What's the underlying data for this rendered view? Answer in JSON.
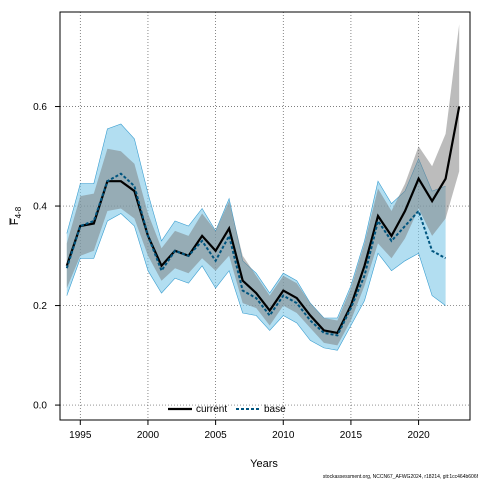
{
  "chart_data": {
    "type": "line",
    "xlabel": "Years",
    "ylabel_main": "F",
    "ylabel_sub": "4-8",
    "xlim": [
      1993.5,
      2023.8
    ],
    "ylim": [
      -0.03,
      0.79
    ],
    "xticks": [
      1995,
      2000,
      2005,
      2010,
      2015,
      2020
    ],
    "yticks": [
      0.0,
      0.2,
      0.4,
      0.6
    ],
    "ytick_labels": [
      "0.0",
      "0.2",
      "0.4",
      "0.6"
    ],
    "grid": true,
    "legend_position": "bottom-center",
    "footer_text": "stockassessment.org, NCCN67_AFWG2024, r18214, git:1cc464b606f",
    "colors": {
      "current_line": "#000000",
      "current_band": "#a9a9a9",
      "base_line": "#00557f",
      "base_band": "#7ec8e8"
    },
    "series": [
      {
        "name": "current",
        "x": [
          1994,
          1995,
          1996,
          1997,
          1998,
          1999,
          2000,
          2001,
          2002,
          2003,
          2004,
          2005,
          2006,
          2007,
          2008,
          2009,
          2010,
          2011,
          2012,
          2013,
          2014,
          2015,
          2016,
          2017,
          2018,
          2019,
          2020,
          2021,
          2022,
          2023
        ],
        "y": [
          0.28,
          0.36,
          0.365,
          0.45,
          0.45,
          0.43,
          0.34,
          0.28,
          0.31,
          0.3,
          0.34,
          0.31,
          0.355,
          0.25,
          0.225,
          0.19,
          0.23,
          0.215,
          0.18,
          0.15,
          0.145,
          0.2,
          0.28,
          0.38,
          0.34,
          0.39,
          0.455,
          0.41,
          0.455,
          0.6
        ],
        "lower": [
          0.235,
          0.3,
          0.31,
          0.39,
          0.395,
          0.375,
          0.3,
          0.25,
          0.275,
          0.265,
          0.295,
          0.27,
          0.3,
          0.205,
          0.195,
          0.16,
          0.2,
          0.185,
          0.155,
          0.125,
          0.12,
          0.17,
          0.24,
          0.325,
          0.295,
          0.335,
          0.395,
          0.34,
          0.375,
          0.47
        ],
        "upper": [
          0.325,
          0.42,
          0.425,
          0.515,
          0.51,
          0.485,
          0.385,
          0.315,
          0.35,
          0.34,
          0.385,
          0.35,
          0.41,
          0.3,
          0.26,
          0.22,
          0.26,
          0.245,
          0.205,
          0.175,
          0.17,
          0.235,
          0.325,
          0.435,
          0.39,
          0.445,
          0.52,
          0.48,
          0.545,
          0.765
        ]
      },
      {
        "name": "base",
        "x": [
          1994,
          1995,
          1996,
          1997,
          1998,
          1999,
          2000,
          2001,
          2002,
          2003,
          2004,
          2005,
          2006,
          2007,
          2008,
          2009,
          2010,
          2011,
          2012,
          2013,
          2014,
          2015,
          2016,
          2017,
          2018,
          2019,
          2020,
          2021,
          2022
        ],
        "y": [
          0.275,
          0.36,
          0.37,
          0.45,
          0.465,
          0.44,
          0.34,
          0.27,
          0.31,
          0.3,
          0.33,
          0.29,
          0.34,
          0.23,
          0.215,
          0.18,
          0.22,
          0.205,
          0.17,
          0.145,
          0.14,
          0.195,
          0.26,
          0.37,
          0.33,
          0.36,
          0.39,
          0.31,
          0.295
        ],
        "lower": [
          0.22,
          0.295,
          0.295,
          0.37,
          0.385,
          0.36,
          0.27,
          0.225,
          0.255,
          0.245,
          0.28,
          0.235,
          0.27,
          0.185,
          0.18,
          0.15,
          0.18,
          0.165,
          0.13,
          0.115,
          0.11,
          0.16,
          0.21,
          0.305,
          0.27,
          0.29,
          0.305,
          0.22,
          0.2
        ],
        "upper": [
          0.345,
          0.445,
          0.445,
          0.555,
          0.565,
          0.535,
          0.425,
          0.33,
          0.37,
          0.36,
          0.395,
          0.35,
          0.415,
          0.29,
          0.265,
          0.225,
          0.265,
          0.25,
          0.205,
          0.175,
          0.175,
          0.24,
          0.33,
          0.45,
          0.405,
          0.43,
          0.495,
          0.43,
          0.44
        ]
      }
    ]
  }
}
